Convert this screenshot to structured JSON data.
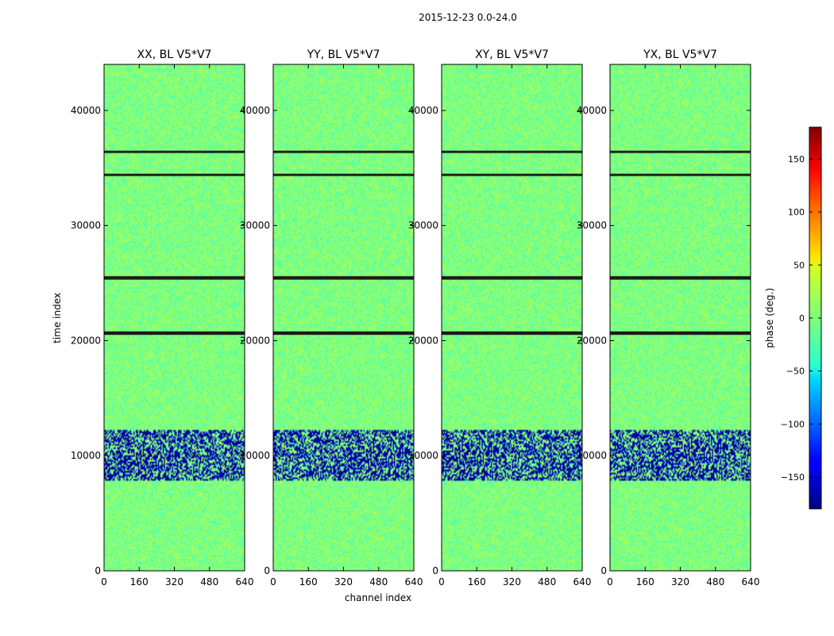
{
  "figure": {
    "suptitle": "2015-12-23 0.0-24.0"
  },
  "chart_data": {
    "type": "heatmap",
    "colormap": "jet",
    "colorbar": {
      "label": "phase (deg.)",
      "range": [
        -180,
        180
      ],
      "ticks": [
        150,
        100,
        50,
        0,
        -50,
        -100,
        -150
      ]
    },
    "xlabel": "channel index",
    "ylabel": "time index",
    "xlim": [
      0,
      640
    ],
    "ylim": [
      0,
      44000
    ],
    "x_ticks": [
      0,
      160,
      320,
      480,
      640
    ],
    "y_ticks": [
      0,
      10000,
      20000,
      30000,
      40000
    ],
    "panels": [
      {
        "title": "XX, BL V5*V7",
        "pol": "XX"
      },
      {
        "title": "YY, BL V5*V7",
        "pol": "YY"
      },
      {
        "title": "XY, BL V5*V7",
        "pol": "XY"
      },
      {
        "title": "YX, BL V5*V7",
        "pol": "YX"
      }
    ],
    "masked_time_index_ranges": [
      [
        20500,
        20800
      ],
      [
        25300,
        25600
      ],
      [
        36300,
        36500
      ],
      [
        34300,
        34500
      ]
    ]
  }
}
